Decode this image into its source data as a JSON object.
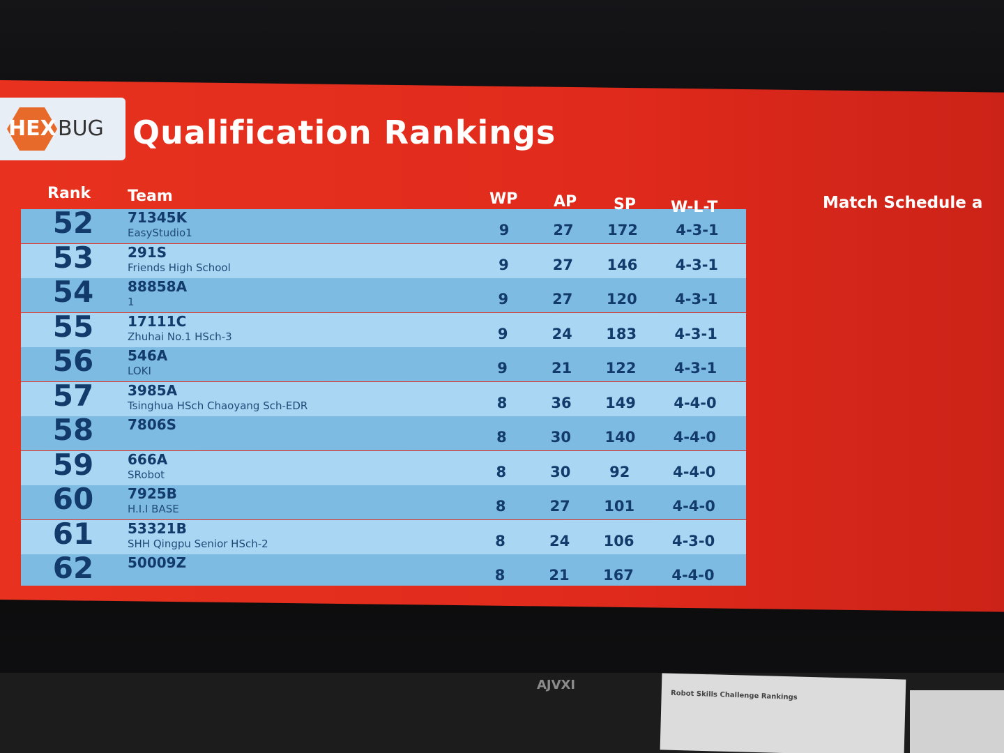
{
  "logo": {
    "left": "HEX",
    "right": "BUG"
  },
  "title": "Qualification Rankings",
  "side_heading": "Match Schedule a",
  "table": {
    "columns": [
      "Rank",
      "Team",
      "WP",
      "AP",
      "SP",
      "W-L-T"
    ],
    "rows": [
      {
        "rank": 52,
        "team": "71345K",
        "name": "EasyStudio1",
        "wp": 9,
        "ap": 27,
        "sp": 172,
        "wlt": "4-3-1"
      },
      {
        "rank": 53,
        "team": "291S",
        "name": "Friends High School",
        "wp": 9,
        "ap": 27,
        "sp": 146,
        "wlt": "4-3-1"
      },
      {
        "rank": 54,
        "team": "88858A",
        "name": "1",
        "wp": 9,
        "ap": 27,
        "sp": 120,
        "wlt": "4-3-1"
      },
      {
        "rank": 55,
        "team": "17111C",
        "name": "Zhuhai No.1 HSch-3",
        "wp": 9,
        "ap": 24,
        "sp": 183,
        "wlt": "4-3-1"
      },
      {
        "rank": 56,
        "team": "546A",
        "name": "LOKI",
        "wp": 9,
        "ap": 21,
        "sp": 122,
        "wlt": "4-3-1"
      },
      {
        "rank": 57,
        "team": "3985A",
        "name": "Tsinghua HSch Chaoyang Sch-EDR",
        "wp": 8,
        "ap": 36,
        "sp": 149,
        "wlt": "4-4-0"
      },
      {
        "rank": 58,
        "team": "7806S",
        "wp": 8,
        "ap": 30,
        "sp": 140,
        "wlt": "4-4-0"
      },
      {
        "rank": 59,
        "team": "666A",
        "name": "SRobot",
        "wp": 8,
        "ap": 30,
        "sp": 92,
        "wlt": "4-4-0"
      },
      {
        "rank": 60,
        "team": "7925B",
        "name": "H.I.I BASE",
        "wp": 8,
        "ap": 27,
        "sp": 101,
        "wlt": "4-4-0"
      },
      {
        "rank": 61,
        "team": "53321B",
        "name": "SHH Qingpu Senior HSch-2",
        "wp": 8,
        "ap": 24,
        "sp": 106,
        "wlt": "4-3-0"
      },
      {
        "rank": 62,
        "team": "50009Z",
        "wp": 8,
        "ap": 21,
        "sp": 167,
        "wlt": "4-4-0"
      }
    ]
  },
  "monitor_brand": "AJVXI",
  "paper_title": "Robot Skills Challenge Rankings"
}
